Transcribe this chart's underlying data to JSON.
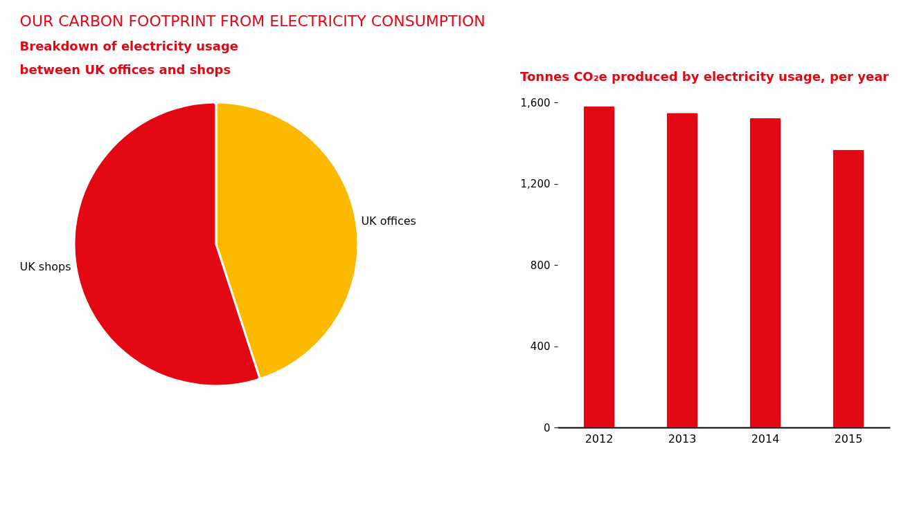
{
  "chart_data": [
    {
      "type": "pie",
      "title": "OUR CARBON FOOTPRINT FROM ELECTRICITY CONSUMPTION",
      "subtitle": "Breakdown of electricity usage between UK offices and shops",
      "categories": [
        "UK offices",
        "UK shops"
      ],
      "values": [
        45,
        55
      ],
      "colors": [
        "#fbb900",
        "#e30613"
      ],
      "legend": false
    },
    {
      "type": "bar",
      "title": "Tonnes CO₂e produced by electricity usage, per year",
      "categories": [
        "2012",
        "2013",
        "2014",
        "2015"
      ],
      "values": [
        1580,
        1548,
        1522,
        1367
      ],
      "color": "#e30613",
      "ylim": [
        0,
        1600
      ],
      "yticks": [
        0,
        400,
        800,
        {
          "value": 1200,
          "label": "1,200"
        },
        {
          "value": 1600,
          "label": "1,600"
        }
      ],
      "grid": false
    }
  ]
}
